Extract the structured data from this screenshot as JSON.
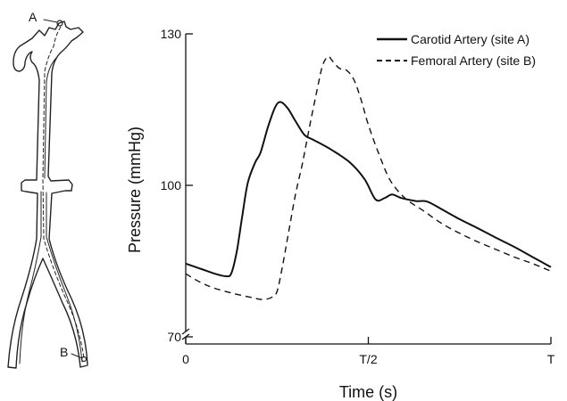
{
  "chart_data": {
    "type": "line",
    "xlabel": "Time (s)",
    "ylabel": "Pressure (mmHg)",
    "xlim": [
      0,
      1
    ],
    "ylim": [
      70,
      130
    ],
    "x_ticks": [
      {
        "value": 0,
        "label": "0"
      },
      {
        "value": 0.5,
        "label": "T/2"
      },
      {
        "value": 1,
        "label": "T"
      }
    ],
    "y_ticks": [
      {
        "value": 70,
        "label": "70"
      },
      {
        "value": 100,
        "label": "100"
      },
      {
        "value": 130,
        "label": "130"
      }
    ],
    "legend_position": "top-right",
    "grid": false,
    "series": [
      {
        "name": "Carotid Artery (site A)",
        "style": "solid",
        "color": "#111111",
        "points": [
          [
            0,
            84.5
          ],
          [
            0.04,
            83.5
          ],
          [
            0.08,
            82.5
          ],
          [
            0.11,
            82.0
          ],
          [
            0.125,
            82.6
          ],
          [
            0.14,
            87
          ],
          [
            0.155,
            94
          ],
          [
            0.17,
            100.5
          ],
          [
            0.19,
            104.5
          ],
          [
            0.205,
            106.5
          ],
          [
            0.225,
            111.5
          ],
          [
            0.245,
            115.5
          ],
          [
            0.26,
            116.5
          ],
          [
            0.28,
            115.2
          ],
          [
            0.3,
            112.8
          ],
          [
            0.325,
            110.0
          ],
          [
            0.35,
            109.0
          ],
          [
            0.4,
            107.0
          ],
          [
            0.45,
            104.5
          ],
          [
            0.49,
            101.2
          ],
          [
            0.52,
            97.2
          ],
          [
            0.545,
            97.5
          ],
          [
            0.565,
            98.2
          ],
          [
            0.59,
            97.5
          ],
          [
            0.63,
            96.9
          ],
          [
            0.66,
            96.8
          ],
          [
            0.7,
            95.3
          ],
          [
            0.75,
            93.3
          ],
          [
            0.8,
            91.5
          ],
          [
            0.85,
            89.6
          ],
          [
            0.9,
            87.8
          ],
          [
            0.95,
            85.8
          ],
          [
            1.0,
            83.8
          ]
        ]
      },
      {
        "name": "Femoral Artery (site B)",
        "style": "dashed",
        "color": "#111111",
        "points": [
          [
            0,
            82.5
          ],
          [
            0.04,
            80.8
          ],
          [
            0.08,
            79.6
          ],
          [
            0.13,
            78.6
          ],
          [
            0.18,
            77.8
          ],
          [
            0.21,
            77.4
          ],
          [
            0.235,
            77.8
          ],
          [
            0.25,
            79.0
          ],
          [
            0.265,
            84.0
          ],
          [
            0.28,
            90.0
          ],
          [
            0.3,
            98.0
          ],
          [
            0.32,
            104.5
          ],
          [
            0.34,
            112.0
          ],
          [
            0.36,
            119.0
          ],
          [
            0.375,
            123.8
          ],
          [
            0.39,
            125.5
          ],
          [
            0.4,
            124.8
          ],
          [
            0.42,
            123.2
          ],
          [
            0.44,
            122.8
          ],
          [
            0.46,
            121.0
          ],
          [
            0.48,
            117.0
          ],
          [
            0.5,
            112.0
          ],
          [
            0.53,
            106.0
          ],
          [
            0.56,
            101.0
          ],
          [
            0.6,
            97.5
          ],
          [
            0.65,
            95.0
          ],
          [
            0.7,
            92.5
          ],
          [
            0.75,
            90.5
          ],
          [
            0.8,
            88.8
          ],
          [
            0.85,
            87.3
          ],
          [
            0.9,
            85.8
          ],
          [
            0.95,
            84.5
          ],
          [
            1.0,
            83.0
          ]
        ]
      }
    ]
  },
  "diagram": {
    "site_a_label": "A",
    "site_b_label": "B"
  }
}
